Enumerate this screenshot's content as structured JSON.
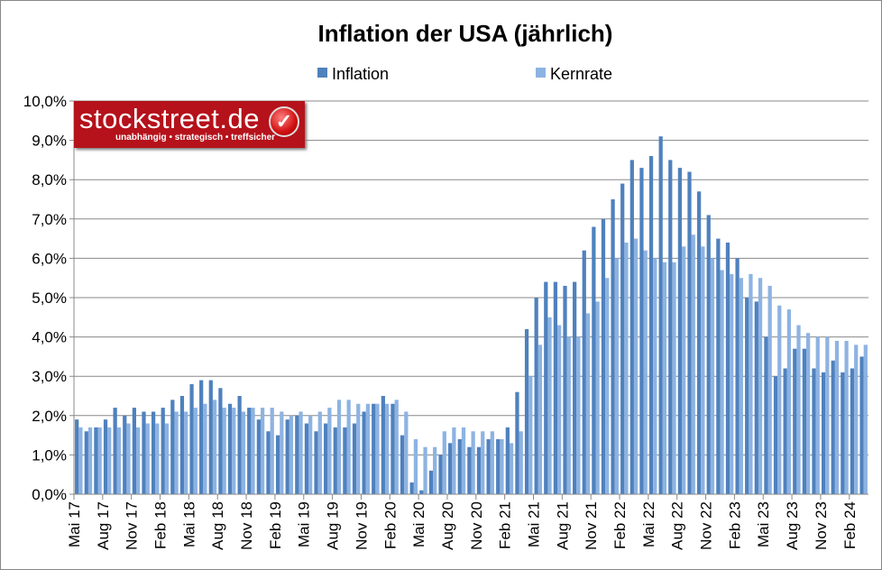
{
  "chart_data": {
    "type": "bar",
    "title": "Inflation der USA (jährlich)",
    "xlabel": "",
    "ylabel": "",
    "ylim": [
      0,
      10
    ],
    "yticks": [
      "0,0%",
      "1,0%",
      "2,0%",
      "3,0%",
      "4,0%",
      "5,0%",
      "6,0%",
      "7,0%",
      "8,0%",
      "9,0%",
      "10,0%"
    ],
    "grid": true,
    "legend": "top",
    "start": "Mai 17",
    "xtick_labels": [
      "Mai 17",
      "Aug 17",
      "Nov 17",
      "Feb 18",
      "Mai 18",
      "Aug 18",
      "Nov 18",
      "Feb 19",
      "Mai 19",
      "Aug 19",
      "Nov 19",
      "Feb 20",
      "Mai 20",
      "Aug 20",
      "Nov 20",
      "Feb 21",
      "Mai 21",
      "Aug 21",
      "Nov 21",
      "Feb 22",
      "Mai 22",
      "Aug 22",
      "Nov 22",
      "Feb 23",
      "Mai 23",
      "Aug 23",
      "Nov 23",
      "Feb 24"
    ],
    "series": [
      {
        "name": "Inflation",
        "color": "#4f81bd",
        "values": [
          1.9,
          1.6,
          1.7,
          1.9,
          2.2,
          2.0,
          2.2,
          2.1,
          2.1,
          2.2,
          2.4,
          2.5,
          2.8,
          2.9,
          2.9,
          2.7,
          2.3,
          2.5,
          2.2,
          1.9,
          1.6,
          1.5,
          1.9,
          2.0,
          1.8,
          1.6,
          1.8,
          1.7,
          1.7,
          1.8,
          2.1,
          2.3,
          2.5,
          2.3,
          1.5,
          0.3,
          0.1,
          0.6,
          1.0,
          1.3,
          1.4,
          1.2,
          1.2,
          1.4,
          1.4,
          1.7,
          2.6,
          4.2,
          5.0,
          5.4,
          5.4,
          5.3,
          5.4,
          6.2,
          6.8,
          7.0,
          7.5,
          7.9,
          8.5,
          8.3,
          8.6,
          9.1,
          8.5,
          8.3,
          8.2,
          7.7,
          7.1,
          6.5,
          6.4,
          6.0,
          5.0,
          4.9,
          4.0,
          3.0,
          3.2,
          3.7,
          3.7,
          3.2,
          3.1,
          3.4,
          3.1,
          3.2,
          3.5
        ]
      },
      {
        "name": "Kernrate",
        "color": "#8db3e2",
        "values": [
          1.7,
          1.7,
          1.7,
          1.7,
          1.7,
          1.8,
          1.7,
          1.8,
          1.8,
          1.8,
          2.1,
          2.1,
          2.2,
          2.3,
          2.4,
          2.2,
          2.2,
          2.1,
          2.2,
          2.2,
          2.2,
          2.1,
          2.0,
          2.1,
          2.0,
          2.1,
          2.2,
          2.4,
          2.4,
          2.3,
          2.3,
          2.3,
          2.3,
          2.4,
          2.1,
          1.4,
          1.2,
          1.2,
          1.6,
          1.7,
          1.7,
          1.6,
          1.6,
          1.6,
          1.4,
          1.3,
          1.6,
          3.0,
          3.8,
          4.5,
          4.3,
          4.0,
          4.0,
          4.6,
          4.9,
          5.5,
          6.0,
          6.4,
          6.5,
          6.2,
          6.0,
          5.9,
          5.9,
          6.3,
          6.6,
          6.3,
          6.0,
          5.7,
          5.6,
          5.5,
          5.6,
          5.5,
          5.3,
          4.8,
          4.7,
          4.3,
          4.1,
          4.0,
          4.0,
          3.9,
          3.9,
          3.8,
          3.8
        ]
      }
    ]
  },
  "logo": {
    "name": "stockstreet.de",
    "tagline": "unabhängig • strategisch • treffsicher"
  }
}
